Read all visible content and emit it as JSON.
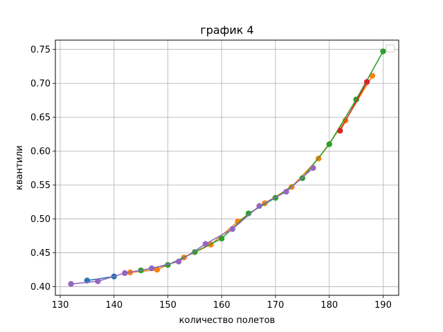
{
  "chart_data": {
    "type": "line",
    "title": "график 4",
    "xlabel": "количество  полетов",
    "ylabel": "квантили",
    "xlim": [
      129.1,
      192.9
    ],
    "ylim": [
      0.3872,
      0.7636
    ],
    "xticks": [
      130,
      140,
      150,
      160,
      170,
      180,
      190
    ],
    "yticks": [
      0.4,
      0.45,
      0.5,
      0.55,
      0.6,
      0.65,
      0.7,
      0.75
    ],
    "grid": true,
    "legend": "top-right, empty",
    "series": [
      {
        "color": "#1f77b4",
        "x": [
          135,
          140
        ],
        "y": [
          0.409,
          0.415
        ]
      },
      {
        "color": "#ff7f0e",
        "x": [
          143,
          148,
          153,
          158,
          163,
          168,
          173,
          178,
          183,
          188
        ],
        "y": [
          0.421,
          0.425,
          0.443,
          0.462,
          0.496,
          0.523,
          0.547,
          0.589,
          0.645,
          0.711
        ]
      },
      {
        "color": "#2ca02c",
        "x": [
          145,
          150,
          155,
          160,
          165,
          170,
          175,
          180,
          185,
          190
        ],
        "y": [
          0.424,
          0.432,
          0.451,
          0.471,
          0.508,
          0.531,
          0.56,
          0.61,
          0.676,
          0.747
        ]
      },
      {
        "color": "#d62728",
        "x": [
          182,
          187
        ],
        "y": [
          0.63,
          0.702
        ]
      },
      {
        "color": "#9467bd",
        "x": [
          132,
          137,
          142,
          147,
          152,
          157,
          162,
          167,
          172,
          177
        ],
        "y": [
          0.404,
          0.408,
          0.42,
          0.427,
          0.437,
          0.463,
          0.485,
          0.519,
          0.54,
          0.575
        ]
      }
    ]
  }
}
